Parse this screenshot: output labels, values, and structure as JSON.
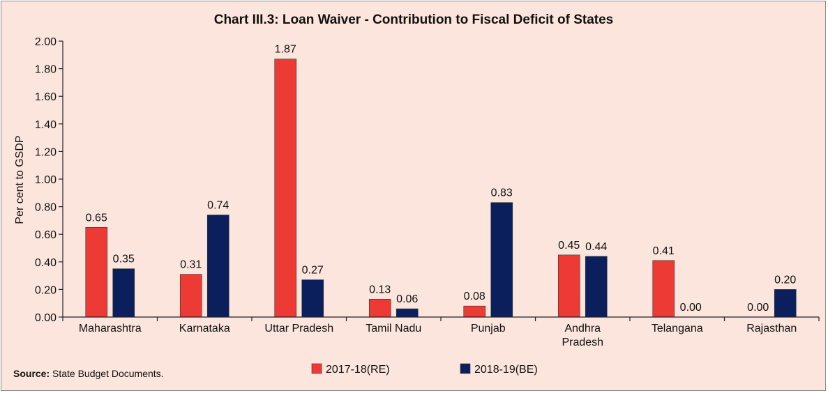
{
  "chart_data": {
    "type": "bar",
    "title": "Chart III.3: Loan Waiver - Contribution to Fiscal Deficit of States",
    "ylabel": "Per cent to GSDP",
    "xlabel": "",
    "ylim": [
      0,
      2.0
    ],
    "yticks": [
      "0.00",
      "0.20",
      "0.40",
      "0.60",
      "0.80",
      "1.00",
      "1.20",
      "1.40",
      "1.60",
      "1.80",
      "2.00"
    ],
    "categories": [
      "Maharashtra",
      "Karnataka",
      "Uttar Pradesh",
      "Tamil Nadu",
      "Punjab",
      "Andhra Pradesh",
      "Telangana",
      "Rajasthan"
    ],
    "series": [
      {
        "name": "2017-18(RE)",
        "color": "#ee3a34",
        "values": [
          0.65,
          0.31,
          1.87,
          0.13,
          0.08,
          0.45,
          0.41,
          0.0
        ],
        "labels": [
          "0.65",
          "0.31",
          "1.87",
          "0.13",
          "0.08",
          "0.45",
          "0.41",
          "0.00"
        ]
      },
      {
        "name": "2018-19(BE)",
        "color": "#0b1f5c",
        "values": [
          0.35,
          0.74,
          0.27,
          0.06,
          0.83,
          0.44,
          0.0,
          0.2
        ],
        "labels": [
          "0.35",
          "0.74",
          "0.27",
          "0.06",
          "0.83",
          "0.44",
          "0.00",
          "0.20"
        ]
      }
    ],
    "legend_position": "bottom-center",
    "grid": false
  },
  "source": {
    "label": "Source:",
    "text": " State Budget Documents."
  },
  "colors": {
    "background": "#fbe5dc",
    "axis": "#222222"
  }
}
